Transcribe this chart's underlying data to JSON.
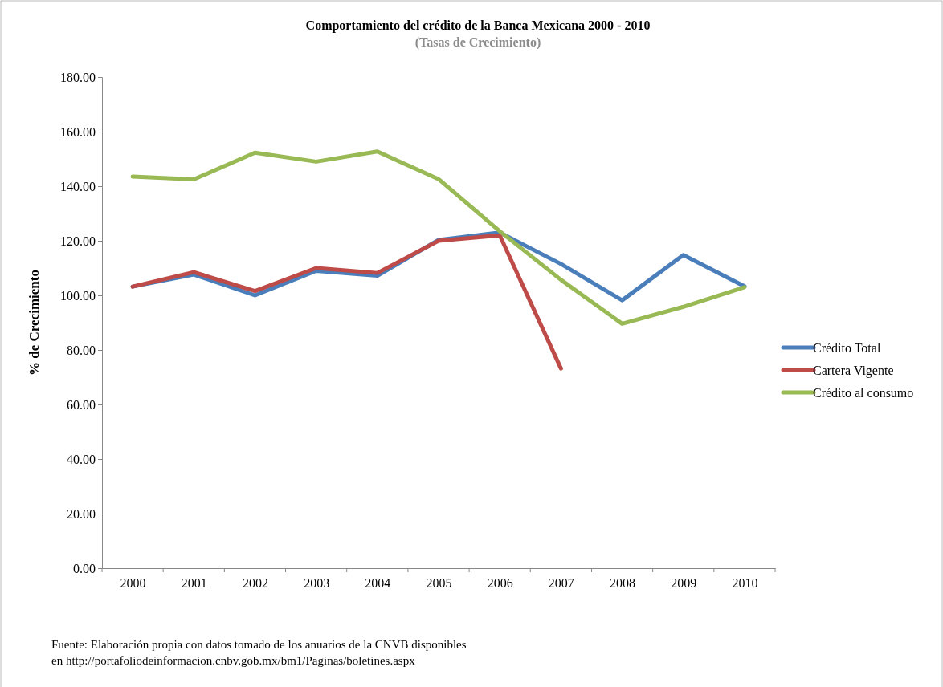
{
  "chart_data": {
    "type": "line",
    "title": "Comportamiento del crédito de la Banca Mexicana 2000 - 2010",
    "subtitle": "(Tasas de Crecimiento)",
    "ylabel": "% de Crecimiento",
    "categories": [
      "2000",
      "2001",
      "2002",
      "2003",
      "2004",
      "2005",
      "2006",
      "2007",
      "2008",
      "2009",
      "2010"
    ],
    "series": [
      {
        "name": "Crédito Total",
        "color": "#4a7ebb",
        "values": [
          103.2,
          107.6,
          100.0,
          109.0,
          107.2,
          120.3,
          123.0,
          111.5,
          98.2,
          114.8,
          103.3
        ]
      },
      {
        "name": "Cartera Vigente",
        "color": "#be4b48",
        "values": [
          103.2,
          108.5,
          101.6,
          110.0,
          108.2,
          120.0,
          122.0,
          73.2,
          null,
          null,
          null
        ]
      },
      {
        "name": "Crédito al consumo",
        "color": "#98b954",
        "values": [
          143.5,
          142.5,
          152.3,
          149.0,
          152.7,
          142.6,
          123.5,
          105.7,
          89.6,
          95.8,
          103.0
        ]
      }
    ],
    "ylim": [
      0,
      180
    ],
    "yticks": [
      {
        "value": 0,
        "label": "0.00"
      },
      {
        "value": 20,
        "label": "20.00"
      },
      {
        "value": 40,
        "label": "40.00"
      },
      {
        "value": 60,
        "label": "60.00"
      },
      {
        "value": 80,
        "label": "80.00"
      },
      {
        "value": 100,
        "label": "100.00"
      },
      {
        "value": 120,
        "label": "120.00"
      },
      {
        "value": 140,
        "label": "140.00"
      },
      {
        "value": 160,
        "label": "160.00"
      },
      {
        "value": 180,
        "label": "180.00"
      }
    ],
    "legend": "right",
    "marker": "none",
    "line_style": "solid",
    "annotations": [
      "Fuente: Elaboración propia con datos tomado de los anuarios de la CNVB disponibles en http://portafoliodeinformacion.cnbv.gob.mx/bm1/Paginas/boletines.aspx"
    ]
  }
}
